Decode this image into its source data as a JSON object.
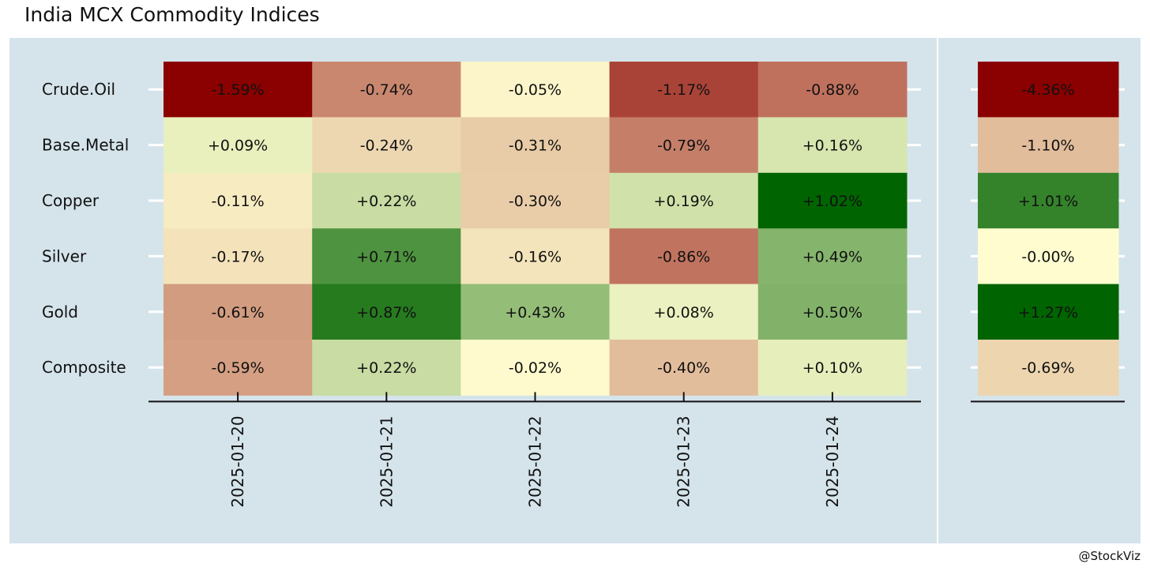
{
  "title": "India MCX Commodity Indices",
  "caption": "@StockViz",
  "chart_data": [
    {
      "type": "heatmap",
      "rows": [
        "Crude.Oil",
        "Base.Metal",
        "Copper",
        "Silver",
        "Gold",
        "Composite"
      ],
      "columns": [
        "2025-01-20",
        "2025-01-21",
        "2025-01-22",
        "2025-01-23",
        "2025-01-24"
      ],
      "values": [
        [
          -1.59,
          -0.74,
          -0.05,
          -1.17,
          -0.88
        ],
        [
          0.09,
          -0.24,
          -0.31,
          -0.79,
          0.16
        ],
        [
          -0.11,
          0.22,
          -0.3,
          0.19,
          1.02
        ],
        [
          -0.17,
          0.71,
          -0.16,
          -0.86,
          0.49
        ],
        [
          -0.61,
          0.87,
          0.43,
          0.08,
          0.5
        ],
        [
          -0.59,
          0.22,
          -0.02,
          -0.4,
          0.1
        ]
      ],
      "labels": [
        [
          "-1.59%",
          "-0.74%",
          "-0.05%",
          "-1.17%",
          "-0.88%"
        ],
        [
          "+0.09%",
          "-0.24%",
          "-0.31%",
          "-0.79%",
          "+0.16%"
        ],
        [
          "-0.11%",
          "+0.22%",
          "-0.30%",
          "+0.19%",
          "+1.02%"
        ],
        [
          "-0.17%",
          "+0.71%",
          "-0.16%",
          "-0.86%",
          "+0.49%"
        ],
        [
          "-0.61%",
          "+0.87%",
          "+0.43%",
          "+0.08%",
          "+0.50%"
        ],
        [
          "-0.59%",
          "+0.22%",
          "-0.02%",
          "-0.40%",
          "+0.10%"
        ]
      ],
      "color_scale": {
        "low": "#8b0000",
        "mid": "#fffdd0",
        "high": "#006400"
      }
    },
    {
      "type": "heatmap",
      "rows": [
        "Crude.Oil",
        "Base.Metal",
        "Copper",
        "Silver",
        "Gold",
        "Composite"
      ],
      "columns": [
        ""
      ],
      "values": [
        [
          -4.36
        ],
        [
          -1.1
        ],
        [
          1.01
        ],
        [
          -0.0
        ],
        [
          1.27
        ],
        [
          -0.69
        ]
      ],
      "labels": [
        [
          "-4.36%"
        ],
        [
          "-1.10%"
        ],
        [
          "+1.01%"
        ],
        [
          "-0.00%"
        ],
        [
          "+1.27%"
        ],
        [
          "-0.69%"
        ]
      ],
      "color_scale": {
        "low": "#8b0000",
        "mid": "#fffdd0",
        "high": "#006400"
      }
    }
  ]
}
